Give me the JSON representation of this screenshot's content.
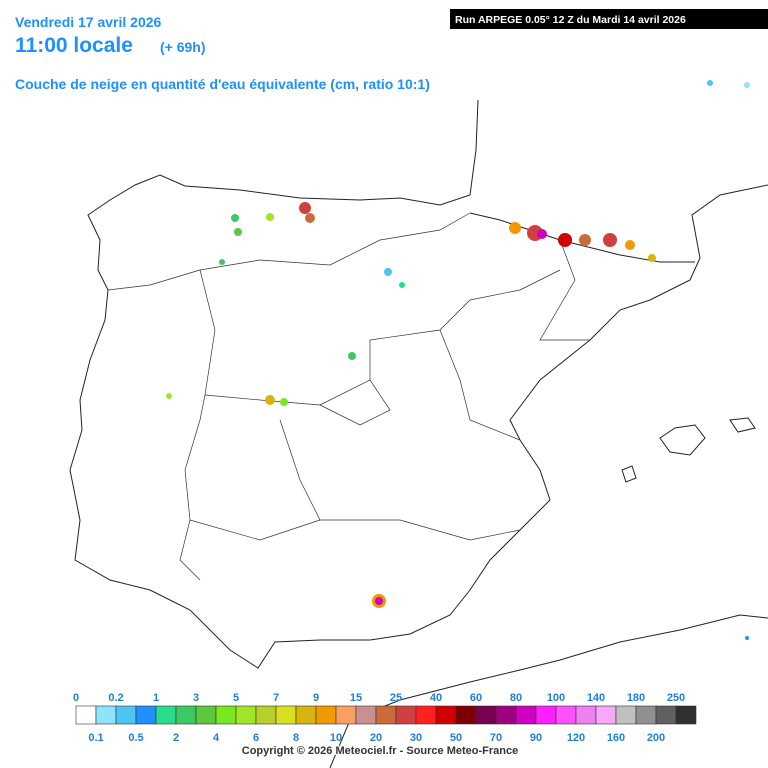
{
  "header": {
    "date": "Vendredi 17 avril 2026",
    "time": "11:00 locale",
    "lead": "(+ 69h)",
    "product": "Couche de neige en quantité d'eau équivalente (cm, ratio 10:1)",
    "run": "Run ARPEGE 0.05° 12 Z du Mardi 14 avril 2026"
  },
  "legend": {
    "labels": [
      "0",
      "0.1",
      "0.2",
      "0.5",
      "1",
      "2",
      "3",
      "4",
      "5",
      "6",
      "7",
      "8",
      "9",
      "10",
      "15",
      "20",
      "25",
      "30",
      "40",
      "50",
      "60",
      "70",
      "80",
      "90",
      "100",
      "120",
      "140",
      "160",
      "180",
      "200",
      "250"
    ],
    "colors": [
      "#ffffff",
      "#8ce4ff",
      "#4cc4f4",
      "#1e90ff",
      "#2adb8a",
      "#3cc864",
      "#5cc83c",
      "#7ae81e",
      "#a0e628",
      "#b8d02a",
      "#d8e020",
      "#d8b410",
      "#f09a00",
      "#f8a060",
      "#c89090",
      "#c86c3c",
      "#d04040",
      "#ff2020",
      "#d00000",
      "#7c0000",
      "#780050",
      "#a00080",
      "#d000c0",
      "#ff20ff",
      "#ff50ff",
      "#f080f0",
      "#f8a8f8",
      "#c0c0c0",
      "#909090",
      "#606060",
      "#303030"
    ]
  },
  "footer": {
    "copyright": "Copyright © 2026 Meteociel.fr - Source Meteo-France"
  }
}
